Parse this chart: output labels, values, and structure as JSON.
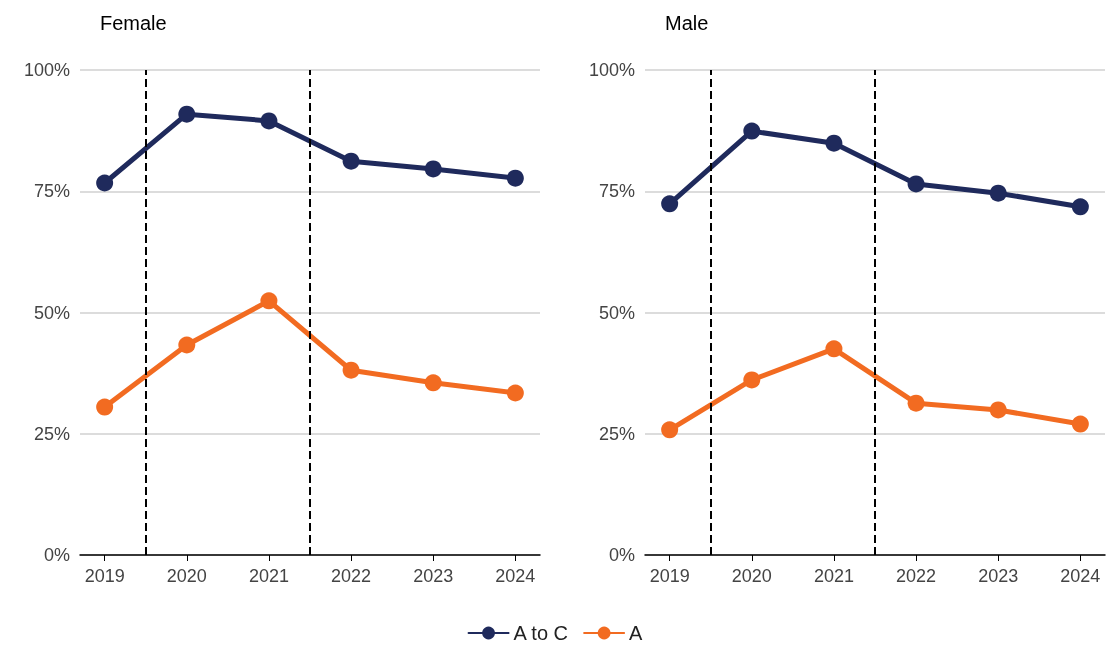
{
  "chart_data": [
    {
      "type": "line",
      "title": "Female",
      "x": [
        2019,
        2020,
        2021,
        2022,
        2023,
        2024
      ],
      "xlim": [
        2018.7,
        2024.3
      ],
      "xticks": [
        2019,
        2020,
        2021,
        2022,
        2023,
        2024
      ],
      "ylim": [
        0,
        100
      ],
      "yticks": [
        {
          "value": 0,
          "label": "0%"
        },
        {
          "value": 25,
          "label": "25%"
        },
        {
          "value": 50,
          "label": "50%"
        },
        {
          "value": 75,
          "label": "75%"
        },
        {
          "value": 100,
          "label": "100%"
        }
      ],
      "grid": "y",
      "legend": "bottom",
      "marker": "circle",
      "line_style": "solid",
      "series": [
        {
          "name": "A to C",
          "color": "#1f2a5c",
          "values": [
            76.7,
            90.9,
            89.5,
            81.2,
            79.6,
            77.7
          ]
        },
        {
          "name": "A",
          "color": "#f26b21",
          "values": [
            30.5,
            43.3,
            52.4,
            38.1,
            35.5,
            33.4
          ]
        }
      ],
      "ref_lines": [
        {
          "axis": "x",
          "value": 2019.5,
          "color": "#000000",
          "line_style": "dashed"
        },
        {
          "axis": "x",
          "value": 2021.5,
          "color": "#000000",
          "line_style": "dashed"
        }
      ]
    },
    {
      "type": "line",
      "title": "Male",
      "x": [
        2019,
        2020,
        2021,
        2022,
        2023,
        2024
      ],
      "xlim": [
        2018.7,
        2024.3
      ],
      "xticks": [
        2019,
        2020,
        2021,
        2022,
        2023,
        2024
      ],
      "ylim": [
        0,
        100
      ],
      "yticks": [
        {
          "value": 0,
          "label": "0%"
        },
        {
          "value": 25,
          "label": "25%"
        },
        {
          "value": 50,
          "label": "50%"
        },
        {
          "value": 75,
          "label": "75%"
        },
        {
          "value": 100,
          "label": "100%"
        }
      ],
      "grid": "y",
      "legend": "bottom",
      "marker": "circle",
      "line_style": "solid",
      "series": [
        {
          "name": "A to C",
          "color": "#1f2a5c",
          "values": [
            72.4,
            87.4,
            84.9,
            76.5,
            74.6,
            71.8
          ]
        },
        {
          "name": "A",
          "color": "#f26b21",
          "values": [
            25.8,
            36.1,
            42.5,
            31.3,
            29.9,
            27.0
          ]
        }
      ],
      "ref_lines": [
        {
          "axis": "x",
          "value": 2019.5,
          "color": "#000000",
          "line_style": "dashed"
        },
        {
          "axis": "x",
          "value": 2021.5,
          "color": "#000000",
          "line_style": "dashed"
        }
      ]
    }
  ]
}
